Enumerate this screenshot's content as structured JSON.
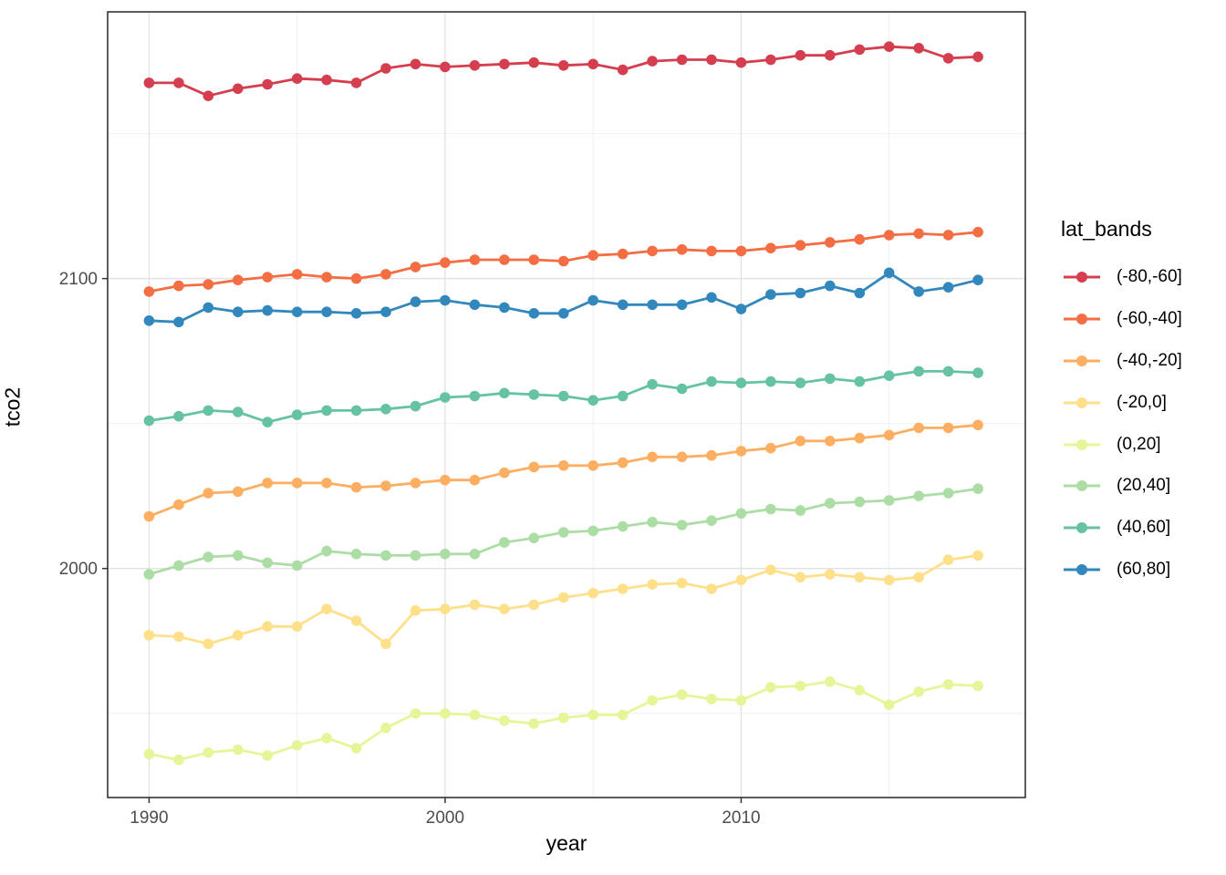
{
  "figure": {
    "xlabel": "year",
    "ylabel": "tco2",
    "legend_title": "lat_bands"
  },
  "chart_data": {
    "type": "line",
    "title": "",
    "xlabel": "year",
    "ylabel": "tco2",
    "legend_title": "lat_bands",
    "legend_position": "right",
    "grid": true,
    "panel_background": "#ffffff",
    "panel_border_color": "#333333",
    "grid_major_color": "#e3e3e3",
    "grid_minor_color": "#f0f0f0",
    "tick_color": "#333333",
    "tick_label_color": "#4d4d4d",
    "x_ticks": [
      1990,
      2000,
      2010
    ],
    "x_minor_ticks": [
      1995,
      2005,
      2015
    ],
    "y_ticks": [
      2000,
      2100
    ],
    "y_minor_ticks": [
      1950,
      2050,
      2150
    ],
    "xlim": [
      1988.6,
      2019.6
    ],
    "ylim": [
      1921,
      2192
    ],
    "x": [
      1990,
      1991,
      1992,
      1993,
      1994,
      1995,
      1996,
      1997,
      1998,
      1999,
      2000,
      2001,
      2002,
      2003,
      2004,
      2005,
      2006,
      2007,
      2008,
      2009,
      2010,
      2011,
      2012,
      2013,
      2014,
      2015,
      2016,
      2017,
      2018
    ],
    "series": [
      {
        "name": "(-80,-60]",
        "color": "#D53E4F",
        "values": [
          2167.5,
          2167.5,
          2163,
          2165.5,
          2167,
          2169,
          2168.5,
          2167.5,
          2172.5,
          2174,
          2173,
          2173.5,
          2174,
          2174.5,
          2173.5,
          2174,
          2172,
          2175,
          2175.5,
          2175.5,
          2174.5,
          2175.5,
          2177,
          2177,
          2179,
          2180,
          2179.5,
          2176,
          2176.5
        ]
      },
      {
        "name": "(-60,-40]",
        "color": "#F46D43",
        "values": [
          2095.5,
          2097.5,
          2098,
          2099.5,
          2100.5,
          2101.5,
          2100.5,
          2100,
          2101.5,
          2104,
          2105.5,
          2106.5,
          2106.5,
          2106.5,
          2106,
          2108,
          2108.5,
          2109.5,
          2110,
          2109.5,
          2109.5,
          2110.5,
          2111.5,
          2112.5,
          2113.5,
          2115,
          2115.5,
          2115,
          2116
        ]
      },
      {
        "name": "(-40,-20]",
        "color": "#FDAE61",
        "values": [
          2018,
          2022,
          2026,
          2026.5,
          2029.5,
          2029.5,
          2029.5,
          2028,
          2028.5,
          2029.5,
          2030.5,
          2030.5,
          2033,
          2035,
          2035.5,
          2035.5,
          2036.5,
          2038.5,
          2038.5,
          2039,
          2040.5,
          2041.5,
          2044,
          2044,
          2045,
          2046,
          2048.5,
          2048.5,
          2049.5
        ]
      },
      {
        "name": "(-20,0]",
        "color": "#FEE08B",
        "values": [
          1977,
          1976.5,
          1974,
          1977,
          1980,
          1980,
          1986,
          1982,
          1974,
          1985.5,
          1986,
          1987.5,
          1986,
          1987.5,
          1990,
          1991.5,
          1993,
          1994.5,
          1995,
          1993,
          1996,
          1999.5,
          1997,
          1998,
          1997,
          1996,
          1997,
          2003,
          2004.5
        ]
      },
      {
        "name": "(0,20]",
        "color": "#E6F598",
        "values": [
          1936,
          1934,
          1936.5,
          1937.5,
          1935.5,
          1939,
          1941.5,
          1938,
          1945,
          1950,
          1950,
          1949.5,
          1947.5,
          1946.5,
          1948.5,
          1949.5,
          1949.5,
          1954.5,
          1956.5,
          1955,
          1954.5,
          1959,
          1959.5,
          1961,
          1958,
          1953,
          1957.5,
          1960,
          1959.5
        ]
      },
      {
        "name": "(20,40]",
        "color": "#ABDDA4",
        "values": [
          1998,
          2001,
          2004,
          2004.5,
          2002,
          2001,
          2006,
          2005,
          2004.5,
          2004.5,
          2005,
          2005,
          2009,
          2010.5,
          2012.5,
          2013,
          2014.5,
          2016,
          2015,
          2016.5,
          2019,
          2020.5,
          2020,
          2022.5,
          2023,
          2023.5,
          2025,
          2026,
          2027.5
        ]
      },
      {
        "name": "(40,60]",
        "color": "#66C2A5",
        "values": [
          2051,
          2052.5,
          2054.5,
          2054,
          2050.5,
          2053,
          2054.5,
          2054.5,
          2055,
          2056,
          2059,
          2059.5,
          2060.5,
          2060,
          2059.5,
          2058,
          2059.5,
          2063.5,
          2062,
          2064.5,
          2064,
          2064.5,
          2064,
          2065.5,
          2064.5,
          2066.5,
          2068,
          2068,
          2067.5
        ]
      },
      {
        "name": "(60,80]",
        "color": "#3288BD",
        "values": [
          2085.5,
          2085,
          2090,
          2088.5,
          2089,
          2088.5,
          2088.5,
          2088,
          2088.5,
          2092,
          2092.5,
          2091,
          2090,
          2088,
          2088,
          2092.5,
          2091,
          2091,
          2091,
          2093.5,
          2089.5,
          2094.5,
          2095,
          2097.5,
          2095,
          2102,
          2095.5,
          2097,
          2099.5
        ]
      }
    ]
  }
}
